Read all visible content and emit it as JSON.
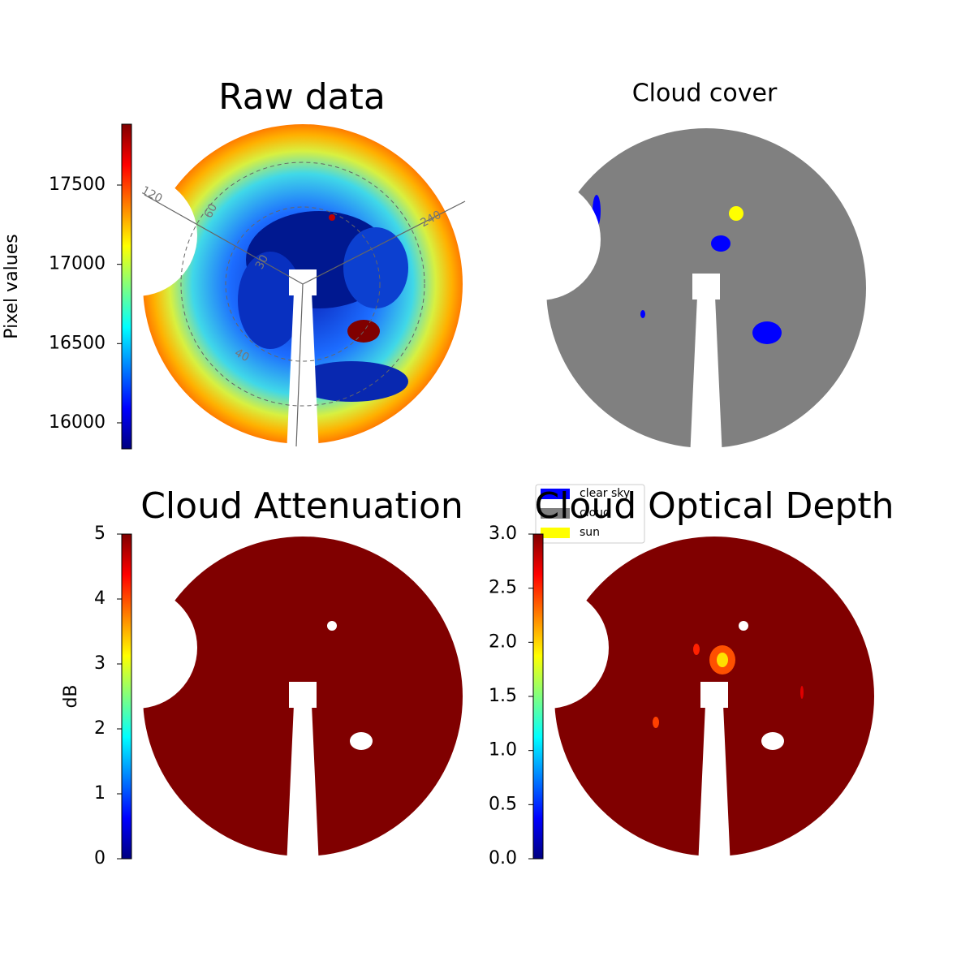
{
  "chart_data": [
    {
      "type": "image",
      "title": "Raw data",
      "colorbar_label": "Pixel values",
      "colormap": "jet",
      "clim": [
        15836,
        17884
      ],
      "cticks": [
        16000,
        16500,
        17000,
        17500
      ],
      "annotations": [
        "120",
        "60",
        "30",
        "40",
        "240"
      ]
    },
    {
      "type": "image",
      "title": "Cloud cover",
      "legend": [
        {
          "name": "clear sky",
          "color": "#0000ff"
        },
        {
          "name": "cloud",
          "color": "#808080"
        },
        {
          "name": "sun",
          "color": "#ffff00"
        }
      ]
    },
    {
      "type": "image",
      "title": "Cloud Attenuation",
      "colorbar_label": "dB",
      "colormap": "jet",
      "clim": [
        0,
        5
      ],
      "cticks": [
        0,
        1,
        2,
        3,
        4,
        5
      ]
    },
    {
      "type": "image",
      "title": "Cloud Optical Depth",
      "colormap": "jet",
      "clim": [
        0,
        3
      ],
      "cticks": [
        {
          "value": 0,
          "label": "0.0"
        },
        0.5,
        {
          "value": 1,
          "label": "1.0"
        },
        1.5,
        {
          "value": 2,
          "label": "2.0"
        },
        2.5,
        {
          "value": 3,
          "label": "3.0"
        }
      ]
    }
  ]
}
